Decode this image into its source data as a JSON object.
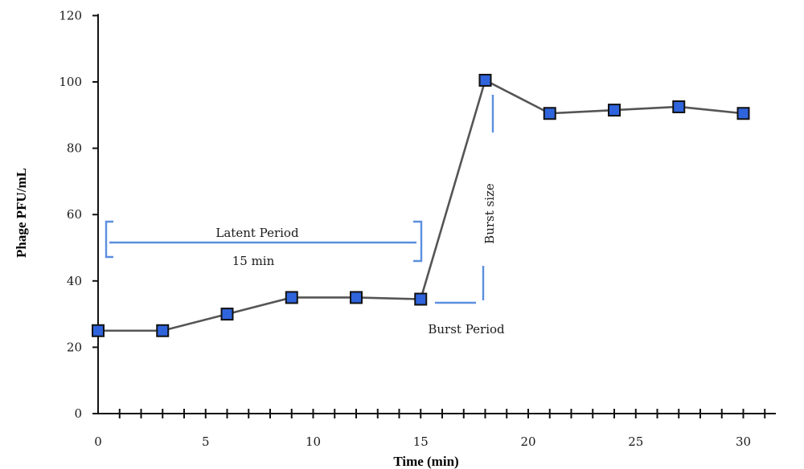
{
  "chart_data": {
    "type": "line",
    "xlabel": "Time (min)",
    "ylabel": "Phage PFU/mL",
    "xlim": [
      0,
      31
    ],
    "ylim": [
      0,
      120
    ],
    "x_ticks": [
      0,
      5,
      10,
      15,
      20,
      25,
      30
    ],
    "y_ticks": [
      0,
      20,
      40,
      60,
      80,
      100,
      120
    ],
    "grid": false,
    "series": [
      {
        "x": [
          0,
          3,
          6,
          9,
          12,
          15,
          18,
          21,
          24,
          27,
          30
        ],
        "values": [
          25,
          25,
          30,
          35,
          35,
          34.5,
          100.5,
          90.5,
          91.5,
          92.5,
          90.5
        ],
        "color": "#2f64dc",
        "marker": "square"
      }
    ],
    "annotations": {
      "latent_label": "Latent Period",
      "latent_duration": "15 min",
      "burst_size": "Burst size",
      "burst_period": "Burst Period"
    },
    "colors": {
      "line": "#555555",
      "marker": "#2f64dc",
      "bracket": "#5b8fe0"
    }
  }
}
